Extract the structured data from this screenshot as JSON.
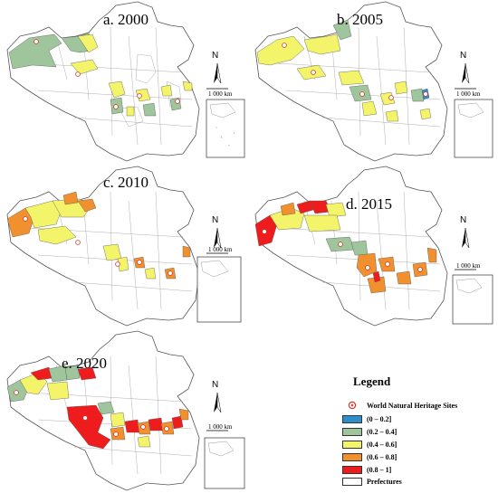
{
  "panels": [
    {
      "title": "a. 2000"
    },
    {
      "title": "b. 2005"
    },
    {
      "title": "c. 2010"
    },
    {
      "title": "d. 2015"
    },
    {
      "title": "e. 2020"
    }
  ],
  "north_letter": "N",
  "scale_label": "1 000 km",
  "legend": {
    "title": "Legend",
    "heritage_label": "World Natural Heritage Sites",
    "classes": [
      {
        "label": "(0 – 0.2]",
        "color": "#2e8ecb"
      },
      {
        "label": "(0.2 – 0.4]",
        "color": "#9fc59c"
      },
      {
        "label": "(0.4 – 0.6]",
        "color": "#f4f46a"
      },
      {
        "label": "(0.6 – 0.8]",
        "color": "#f1902e"
      },
      {
        "label": "(0.8 – 1]",
        "color": "#ee1c1c"
      }
    ],
    "prefectures_label": "Prefectures",
    "prefectures_color": "#ffffff"
  },
  "colors": {
    "boundary": "#8c8c8c",
    "outline": "#555555",
    "site_marker": "#d9342b"
  }
}
